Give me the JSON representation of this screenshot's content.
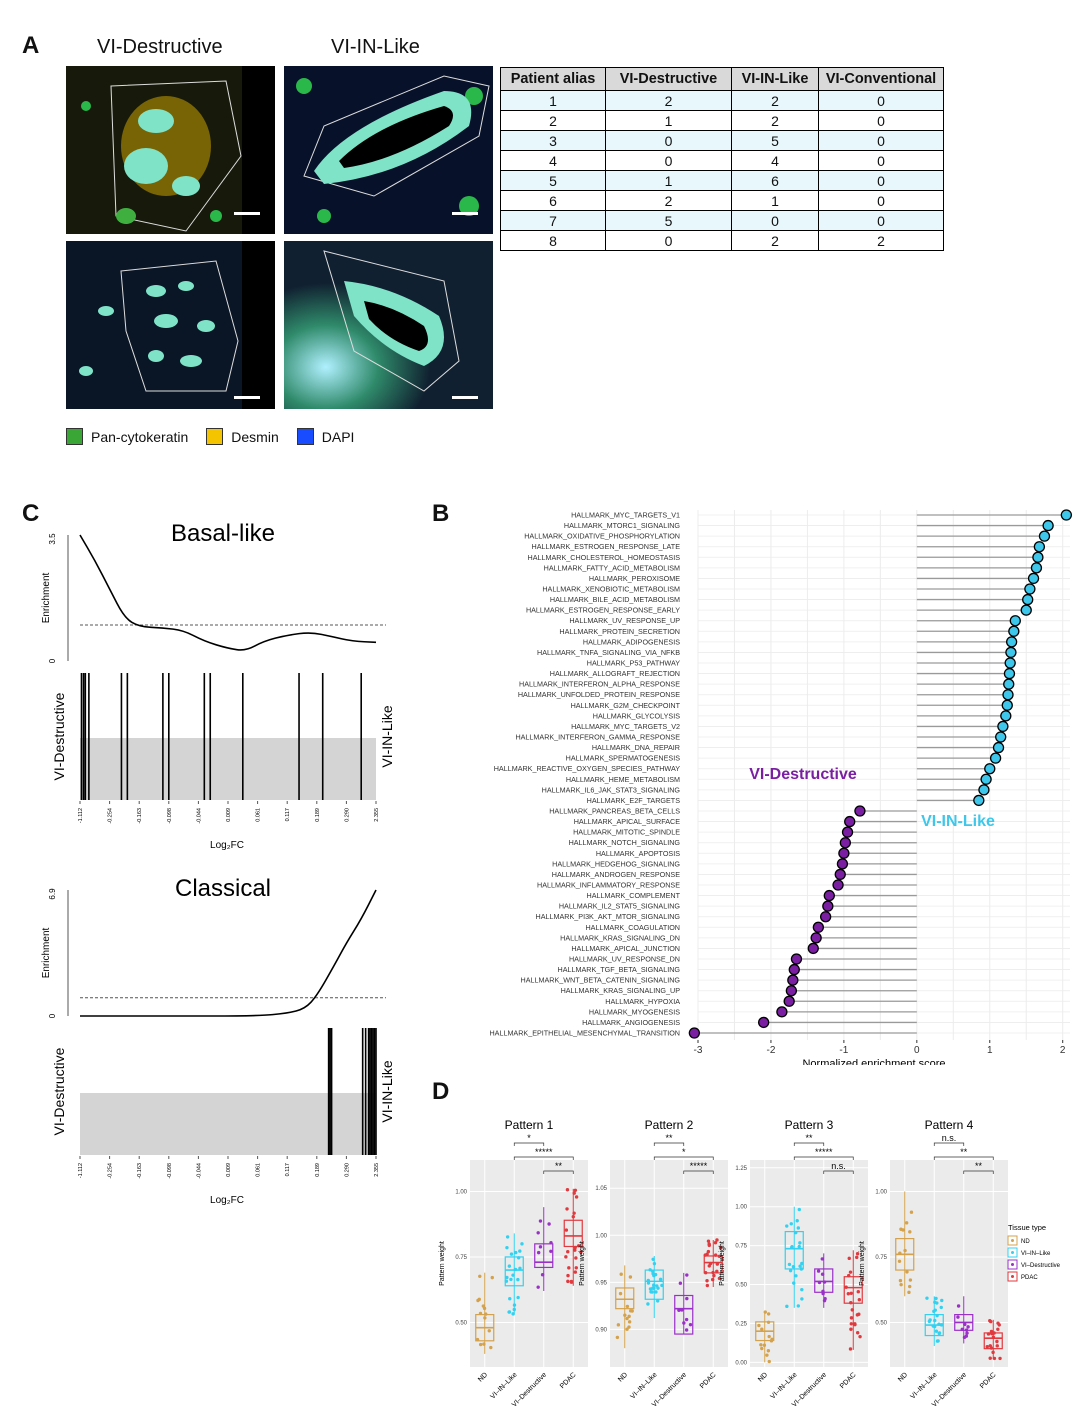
{
  "panelA": {
    "letter": "A",
    "titles": [
      "VI-Destructive",
      "VI-IN-Like"
    ],
    "table": {
      "headers": [
        "Patient alias",
        "VI-Destructive",
        "VI-IN-Like",
        "VI-Conventional"
      ],
      "rows": [
        [
          "1",
          "2",
          "2",
          "0"
        ],
        [
          "2",
          "1",
          "2",
          "0"
        ],
        [
          "3",
          "0",
          "5",
          "0"
        ],
        [
          "4",
          "0",
          "4",
          "0"
        ],
        [
          "5",
          "1",
          "6",
          "0"
        ],
        [
          "6",
          "2",
          "1",
          "0"
        ],
        [
          "7",
          "5",
          "0",
          "0"
        ],
        [
          "8",
          "0",
          "2",
          "2"
        ]
      ]
    },
    "legend": [
      {
        "label": "Pan-cytokeratin",
        "color": "#3aa635"
      },
      {
        "label": "Desmin",
        "color": "#f5c400"
      },
      {
        "label": "DAPI",
        "color": "#1a4cff"
      }
    ]
  },
  "panelC": {
    "letter": "C",
    "left_label": "VI-Destructive",
    "right_label": "VI-IN-Like",
    "ylabel": "Enrichment",
    "xlabel": "Log₂FC",
    "xticks": [
      "-1.112",
      "-0.254",
      "-0.163",
      "-0.098",
      "-0.044",
      "0.009",
      "0.061",
      "0.117",
      "0.189",
      "0.290",
      "2.355"
    ],
    "plots": [
      {
        "title": "Basal-like",
        "ymax_label": "3.5",
        "ymin_label": "0",
        "ymax": 3.5,
        "baseline": 1.0,
        "curve": [
          [
            0,
            3.5
          ],
          [
            0.05,
            2.8
          ],
          [
            0.1,
            2.0
          ],
          [
            0.15,
            1.2
          ],
          [
            0.2,
            0.95
          ],
          [
            0.28,
            0.92
          ],
          [
            0.35,
            0.85
          ],
          [
            0.42,
            0.55
          ],
          [
            0.5,
            0.35
          ],
          [
            0.56,
            0.28
          ],
          [
            0.62,
            0.55
          ],
          [
            0.7,
            0.72
          ],
          [
            0.78,
            0.8
          ],
          [
            0.85,
            0.68
          ],
          [
            0.92,
            0.55
          ],
          [
            1.0,
            0.52
          ]
        ],
        "hits": [
          0.005,
          0.012,
          0.018,
          0.03,
          0.14,
          0.16,
          0.28,
          0.3,
          0.42,
          0.44,
          0.55,
          0.74,
          0.82,
          0.95
        ]
      },
      {
        "title": "Classical",
        "ymax_label": "6.9",
        "ymin_label": "0",
        "ymax": 6.9,
        "baseline": 1.0,
        "curve": [
          [
            0,
            0
          ],
          [
            0.3,
            0
          ],
          [
            0.6,
            0
          ],
          [
            0.7,
            0.15
          ],
          [
            0.76,
            0.4
          ],
          [
            0.8,
            1.1
          ],
          [
            0.86,
            2.8
          ],
          [
            0.9,
            4.0
          ],
          [
            0.95,
            5.3
          ],
          [
            1.0,
            6.9
          ]
        ],
        "hits": [
          0.84,
          0.845,
          0.85,
          0.955,
          0.965,
          0.975,
          0.98,
          0.985,
          0.99,
          0.995,
          1.0
        ]
      }
    ]
  },
  "panelB": {
    "letter": "B",
    "xlabel": "Normalized enrichment score",
    "xlim": [
      -3,
      2.1
    ],
    "xticks": [
      -3,
      -2,
      -1,
      0,
      1,
      2
    ],
    "label_neg": "VI-Destructive",
    "label_pos": "VI-IN-Like",
    "color_pos": "#3ec7ea",
    "color_neg": "#7b1fa2",
    "terms": [
      [
        "HALLMARK_MYC_TARGETS_V1",
        2.05
      ],
      [
        "HALLMARK_MTORC1_SIGNALING",
        1.8
      ],
      [
        "HALLMARK_OXIDATIVE_PHOSPHORYLATION",
        1.75
      ],
      [
        "HALLMARK_ESTROGEN_RESPONSE_LATE",
        1.68
      ],
      [
        "HALLMARK_CHOLESTEROL_HOMEOSTASIS",
        1.66
      ],
      [
        "HALLMARK_FATTY_ACID_METABOLISM",
        1.64
      ],
      [
        "HALLMARK_PEROXISOME",
        1.6
      ],
      [
        "HALLMARK_XENOBIOTIC_METABOLISM",
        1.55
      ],
      [
        "HALLMARK_BILE_ACID_METABOLISM",
        1.52
      ],
      [
        "HALLMARK_ESTROGEN_RESPONSE_EARLY",
        1.5
      ],
      [
        "HALLMARK_UV_RESPONSE_UP",
        1.35
      ],
      [
        "HALLMARK_PROTEIN_SECRETION",
        1.33
      ],
      [
        "HALLMARK_ADIPOGENESIS",
        1.3
      ],
      [
        "HALLMARK_TNFA_SIGNALING_VIA_NFKB",
        1.29
      ],
      [
        "HALLMARK_P53_PATHWAY",
        1.28
      ],
      [
        "HALLMARK_ALLOGRAFT_REJECTION",
        1.27
      ],
      [
        "HALLMARK_INTERFERON_ALPHA_RESPONSE",
        1.26
      ],
      [
        "HALLMARK_UNFOLDED_PROTEIN_RESPONSE",
        1.25
      ],
      [
        "HALLMARK_G2M_CHECKPOINT",
        1.24
      ],
      [
        "HALLMARK_GLYCOLYSIS",
        1.22
      ],
      [
        "HALLMARK_MYC_TARGETS_V2",
        1.18
      ],
      [
        "HALLMARK_INTERFERON_GAMMA_RESPONSE",
        1.15
      ],
      [
        "HALLMARK_DNA_REPAIR",
        1.12
      ],
      [
        "HALLMARK_SPERMATOGENESIS",
        1.08
      ],
      [
        "HALLMARK_REACTIVE_OXYGEN_SPECIES_PATHWAY",
        1.0
      ],
      [
        "HALLMARK_HEME_METABOLISM",
        0.95
      ],
      [
        "HALLMARK_IL6_JAK_STAT3_SIGNALING",
        0.92
      ],
      [
        "HALLMARK_E2F_TARGETS",
        0.85
      ],
      [
        "HALLMARK_PANCREAS_BETA_CELLS",
        -0.78
      ],
      [
        "HALLMARK_APICAL_SURFACE",
        -0.92
      ],
      [
        "HALLMARK_MITOTIC_SPINDLE",
        -0.95
      ],
      [
        "HALLMARK_NOTCH_SIGNALING",
        -0.98
      ],
      [
        "HALLMARK_APOPTOSIS",
        -1.0
      ],
      [
        "HALLMARK_HEDGEHOG_SIGNALING",
        -1.02
      ],
      [
        "HALLMARK_ANDROGEN_RESPONSE",
        -1.05
      ],
      [
        "HALLMARK_INFLAMMATORY_RESPONSE",
        -1.08
      ],
      [
        "HALLMARK_COMPLEMENT",
        -1.2
      ],
      [
        "HALLMARK_IL2_STAT5_SIGNALING",
        -1.22
      ],
      [
        "HALLMARK_PI3K_AKT_MTOR_SIGNALING",
        -1.25
      ],
      [
        "HALLMARK_COAGULATION",
        -1.35
      ],
      [
        "HALLMARK_KRAS_SIGNALING_DN",
        -1.38
      ],
      [
        "HALLMARK_APICAL_JUNCTION",
        -1.42
      ],
      [
        "HALLMARK_UV_RESPONSE_DN",
        -1.65
      ],
      [
        "HALLMARK_TGF_BETA_SIGNALING",
        -1.68
      ],
      [
        "HALLMARK_WNT_BETA_CATENIN_SIGNALING",
        -1.7
      ],
      [
        "HALLMARK_KRAS_SIGNALING_UP",
        -1.72
      ],
      [
        "HALLMARK_HYPOXIA",
        -1.75
      ],
      [
        "HALLMARK_MYOGENESIS",
        -1.85
      ],
      [
        "HALLMARK_ANGIOGENESIS",
        -2.1
      ],
      [
        "HALLMARK_EPITHELIAL_MESENCHYMAL_TRANSITION",
        -3.05
      ]
    ]
  },
  "panelD": {
    "letter": "D",
    "ylabel": "Pattern weight",
    "categories": [
      "ND",
      "VI–IN–Like",
      "VI–Destructive",
      "PDAC"
    ],
    "colors": [
      "#d4a24c",
      "#33d1f0",
      "#9b30c8",
      "#e0393e"
    ],
    "legend_title": "Tissue type",
    "legend_labels": [
      "ND",
      "VI–IN–Like",
      "VI–Destructive",
      "PDAC"
    ],
    "patterns": [
      {
        "title": "Pattern 1",
        "ylim": [
          0.33,
          1.12
        ],
        "yticks": [
          0.5,
          0.75,
          1.0
        ],
        "ytick_labels": [
          "0.50",
          "0.75",
          "1.00"
        ],
        "boxes": [
          [
            0.38,
            0.43,
            0.48,
            0.53,
            0.69
          ],
          [
            0.53,
            0.64,
            0.7,
            0.75,
            0.84
          ],
          [
            0.62,
            0.71,
            0.73,
            0.8,
            0.94
          ],
          [
            0.64,
            0.79,
            0.83,
            0.89,
            1.01
          ]
        ],
        "sig": [
          {
            "a": 1,
            "b": 2,
            "label": "*"
          },
          {
            "a": 1,
            "b": 3,
            "label": "*****"
          },
          {
            "a": 2,
            "b": 3,
            "label": "**"
          }
        ]
      },
      {
        "title": "Pattern 2",
        "ylim": [
          0.86,
          1.08
        ],
        "yticks": [
          0.9,
          0.95,
          1.0,
          1.05
        ],
        "ytick_labels": [
          "0.90",
          "0.95",
          "1.00",
          "1.05"
        ],
        "boxes": [
          [
            0.88,
            0.922,
            0.932,
            0.944,
            0.968
          ],
          [
            0.912,
            0.932,
            0.951,
            0.963,
            0.978
          ],
          [
            0.895,
            0.895,
            0.922,
            0.936,
            0.96
          ],
          [
            0.945,
            0.96,
            0.971,
            0.978,
            0.995
          ]
        ],
        "sig": [
          {
            "a": 1,
            "b": 2,
            "label": "**"
          },
          {
            "a": 1,
            "b": 3,
            "label": "*"
          },
          {
            "a": 2,
            "b": 3,
            "label": "*****"
          }
        ]
      },
      {
        "title": "Pattern 3",
        "ylim": [
          -0.03,
          1.3
        ],
        "yticks": [
          0.0,
          0.25,
          0.5,
          0.75,
          1.0,
          1.25
        ],
        "ytick_labels": [
          "0.00",
          "0.25",
          "0.50",
          "0.75",
          "1.00",
          "1.25"
        ],
        "boxes": [
          [
            0.0,
            0.14,
            0.2,
            0.26,
            0.33
          ],
          [
            0.35,
            0.6,
            0.73,
            0.84,
            1.0
          ],
          [
            0.35,
            0.45,
            0.52,
            0.6,
            0.7
          ],
          [
            0.08,
            0.38,
            0.48,
            0.55,
            0.72
          ]
        ],
        "sig": [
          {
            "a": 1,
            "b": 2,
            "label": "**"
          },
          {
            "a": 1,
            "b": 3,
            "label": "*****"
          },
          {
            "a": 2,
            "b": 3,
            "label": "n.s."
          }
        ]
      },
      {
        "title": "Pattern 4",
        "ylim": [
          0.33,
          1.12
        ],
        "yticks": [
          0.5,
          0.75,
          1.0
        ],
        "ytick_labels": [
          "0.50",
          "0.75",
          "1.00"
        ],
        "boxes": [
          [
            0.6,
            0.7,
            0.76,
            0.82,
            1.0
          ],
          [
            0.41,
            0.45,
            0.49,
            0.53,
            0.6
          ],
          [
            0.42,
            0.47,
            0.5,
            0.53,
            0.6
          ],
          [
            0.36,
            0.4,
            0.44,
            0.46,
            0.51
          ]
        ],
        "sig": [
          {
            "a": 1,
            "b": 2,
            "label": "n.s."
          },
          {
            "a": 1,
            "b": 3,
            "label": "**"
          },
          {
            "a": 2,
            "b": 3,
            "label": "**"
          }
        ]
      }
    ]
  }
}
